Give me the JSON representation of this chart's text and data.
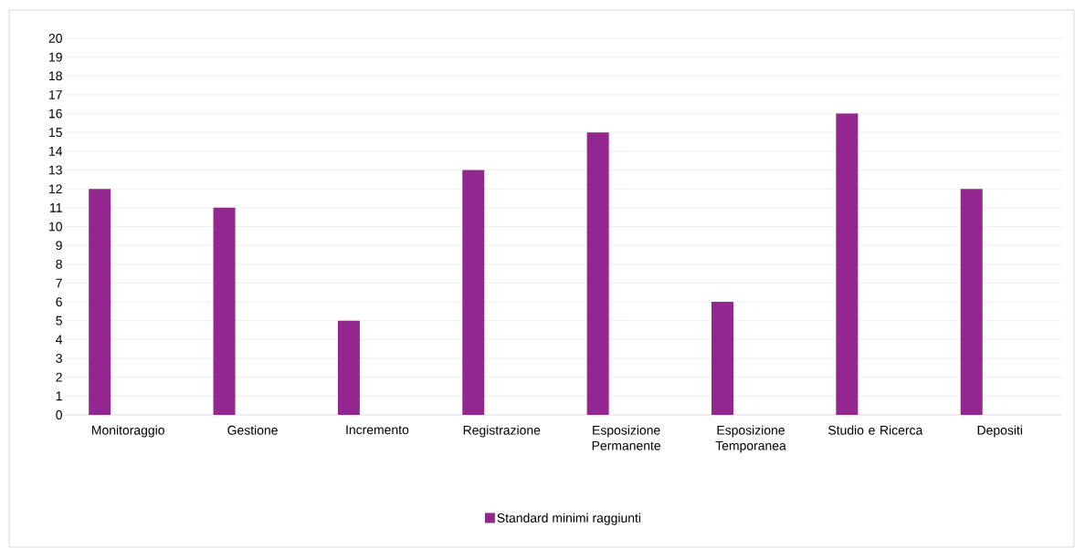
{
  "chart_data": {
    "type": "bar",
    "categories": [
      "Monitoraggio",
      "Gestione",
      "Incremento",
      "Registrazione",
      "Esposizione Permanente",
      "Esposizione Temporanea",
      "Studio e Ricerca",
      "Depositi"
    ],
    "series": [
      {
        "name": "Standard minimi raggiunti",
        "color": "#92278f",
        "values": [
          12,
          11,
          5,
          13,
          15,
          6,
          16,
          12
        ]
      }
    ],
    "ylim": [
      0,
      20
    ],
    "yticks": [
      0,
      1,
      2,
      3,
      4,
      5,
      6,
      7,
      8,
      9,
      10,
      11,
      12,
      13,
      14,
      15,
      16,
      17,
      18,
      19,
      20
    ],
    "grid": "y",
    "legend": "bottom"
  }
}
